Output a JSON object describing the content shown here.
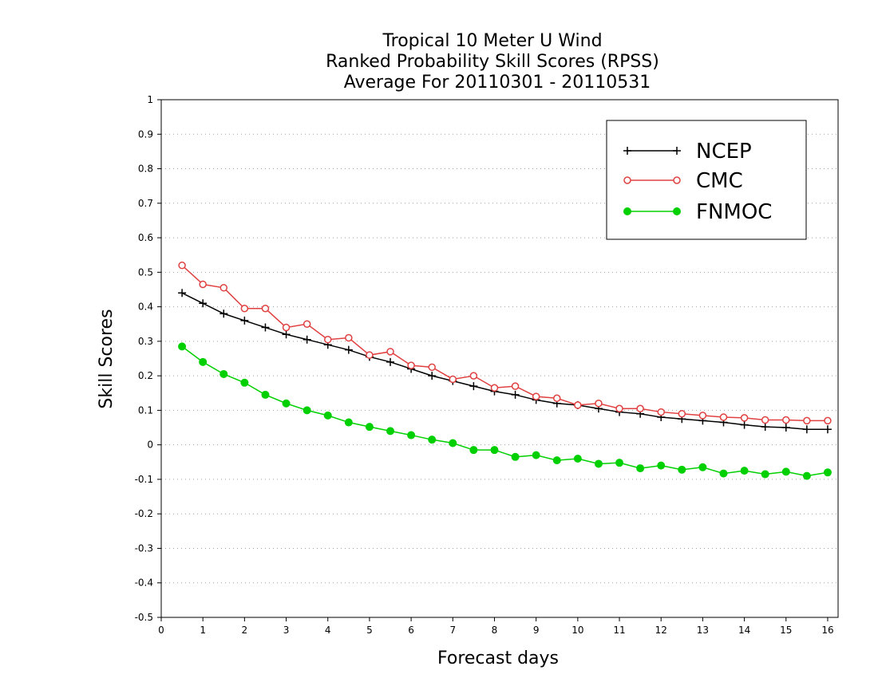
{
  "chart_data": {
    "type": "line",
    "title": [
      "Tropical 10 Meter U Wind",
      "Ranked Probability Skill Scores (RPSS)",
      "Average For 20110301 - 20110531"
    ],
    "xlabel": "Forecast days",
    "ylabel": "Skill Scores",
    "xlim": [
      0,
      16.25
    ],
    "ylim": [
      -0.5,
      1.0
    ],
    "x_ticks": [
      0,
      1,
      2,
      3,
      4,
      5,
      6,
      7,
      8,
      9,
      10,
      11,
      12,
      13,
      14,
      15,
      16
    ],
    "y_ticks": [
      -0.5,
      -0.4,
      -0.3,
      -0.2,
      -0.1,
      0,
      0.1,
      0.2,
      0.3,
      0.4,
      0.5,
      0.6,
      0.7,
      0.8,
      0.9,
      1
    ],
    "y_tick_labels": [
      "-0.5",
      "-0.4",
      "-0.3",
      "-0.2",
      "-0.1",
      "0",
      "0.1",
      "0.2",
      "0.3",
      "0.4",
      "0.5",
      "0.6",
      "0.7",
      "0.8",
      "0.9",
      "1"
    ],
    "grid": "horizontal-dotted",
    "legend_position": "top-right",
    "x": [
      0.5,
      1,
      1.5,
      2,
      2.5,
      3,
      3.5,
      4,
      4.5,
      5,
      5.5,
      6,
      6.5,
      7,
      7.5,
      8,
      8.5,
      9,
      9.5,
      10,
      10.5,
      11,
      11.5,
      12,
      12.5,
      13,
      13.5,
      14,
      14.5,
      15,
      15.5,
      16
    ],
    "series": [
      {
        "name": "NCEP",
        "color": "#000000",
        "marker": "plus",
        "values": [
          0.44,
          0.41,
          0.38,
          0.36,
          0.34,
          0.32,
          0.305,
          0.29,
          0.275,
          0.255,
          0.24,
          0.22,
          0.2,
          0.185,
          0.17,
          0.155,
          0.145,
          0.13,
          0.12,
          0.115,
          0.105,
          0.095,
          0.09,
          0.08,
          0.075,
          0.07,
          0.065,
          0.058,
          0.052,
          0.05,
          0.045,
          0.045
        ]
      },
      {
        "name": "CMC",
        "color": "#e04040",
        "marker": "open-circle",
        "values": [
          0.52,
          0.465,
          0.455,
          0.395,
          0.395,
          0.34,
          0.35,
          0.305,
          0.31,
          0.26,
          0.27,
          0.23,
          0.225,
          0.19,
          0.2,
          0.165,
          0.17,
          0.14,
          0.135,
          0.115,
          0.12,
          0.105,
          0.105,
          0.095,
          0.09,
          0.085,
          0.08,
          0.078,
          0.072,
          0.072,
          0.07,
          0.07
        ]
      },
      {
        "name": "FNMOC",
        "color": "#00d000",
        "marker": "filled-circle",
        "values": [
          0.285,
          0.24,
          0.205,
          0.18,
          0.145,
          0.12,
          0.1,
          0.085,
          0.065,
          0.052,
          0.04,
          0.028,
          0.015,
          0.005,
          -0.015,
          -0.015,
          -0.035,
          -0.03,
          -0.045,
          -0.04,
          -0.055,
          -0.052,
          -0.068,
          -0.06,
          -0.072,
          -0.065,
          -0.083,
          -0.075,
          -0.085,
          -0.078,
          -0.09,
          -0.08
        ]
      }
    ]
  }
}
